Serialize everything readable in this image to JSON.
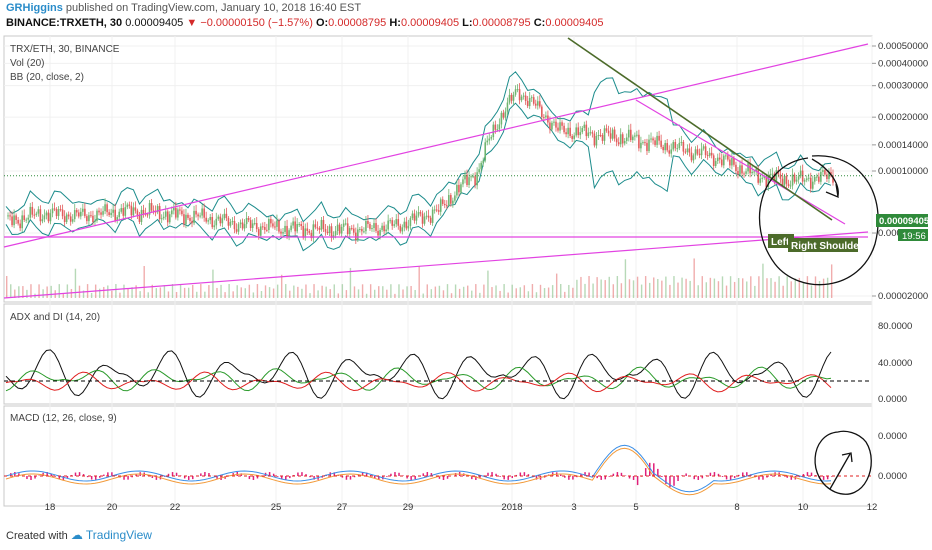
{
  "header": {
    "publisher": "GRHiggins",
    "published_text": "published on TradingView.com, January 10, 2018 16:40 EST",
    "symbol_line": "BINANCE:TRXETH, 30",
    "last": "0.00009405",
    "change": "−0.00000150 (−1.57%)",
    "o_label": "O:",
    "o_val": "0.00008795",
    "h_label": "H:",
    "h_val": "0.00009405",
    "l_label": "L:",
    "l_val": "0.00008795",
    "c_label": "C:",
    "c_val": "0.00009405"
  },
  "legend": {
    "main_title": "TRX/ETH, 30, BINANCE",
    "vol": "Vol (20)",
    "bb": "BB (20, close, 2)",
    "adx": "ADX and DI (14, 20)",
    "macd": "MACD (12, 26, close, 9)"
  },
  "annotations": {
    "left": "Left",
    "right_shoulder": "Right Shoulder",
    "price_badge": "0.00009405",
    "timer_badge": "19:56"
  },
  "footer": {
    "created": "Created with",
    "brand": "TradingView"
  },
  "colors": {
    "up": "#6fb46f",
    "down": "#e25b5b",
    "bb": "#1c8c8c",
    "trend_magenta": "#e243e2",
    "trend_dark": "#4c6b2a",
    "adx": "#111111",
    "di_plus": "#2a9a2a",
    "di_minus": "#e02020",
    "macd_line": "#3a8ee6",
    "signal_line": "#f29a3a",
    "hist": "#e0207a"
  },
  "chart_data": [
    {
      "type": "line",
      "title": "TRX/ETH, 30, BINANCE",
      "x_tick_labels": [
        "18",
        "20",
        "22",
        "25",
        "27",
        "29",
        "2018",
        "3",
        "5",
        "8",
        "10",
        "12"
      ],
      "y_tick_labels": [
        "0.00050000",
        "0.00040000",
        "0.00030000",
        "0.00020000",
        "0.00014000",
        "0.00010000",
        "0.00004500",
        "0.00002000"
      ],
      "y_scale": "log",
      "series": [
        {
          "values": [
            5.2e-05,
            5.8e-05,
            5.6e-05,
            6e-05,
            5.8e-05,
            5.5e-05,
            5e-05,
            4.8e-05,
            4.7e-05,
            4.7e-05,
            5e-05,
            6e-05,
            0.0001,
            0.00028,
            0.00017,
            0.00016,
            0.00015,
            0.000135,
            0.00012,
            9.5e-05,
            8.85e-05,
            9.405e-05
          ]
        }
      ],
      "last_price": 9.405e-05
    },
    {
      "type": "line",
      "title": "ADX and DI (14, 20)",
      "y_tick_labels": [
        "80.0000",
        "40.0000",
        "0.0000"
      ],
      "threshold": 20
    },
    {
      "type": "line",
      "title": "MACD (12, 26, close, 9)",
      "y_tick_labels": [
        "0.0000",
        "0.0000"
      ]
    }
  ]
}
